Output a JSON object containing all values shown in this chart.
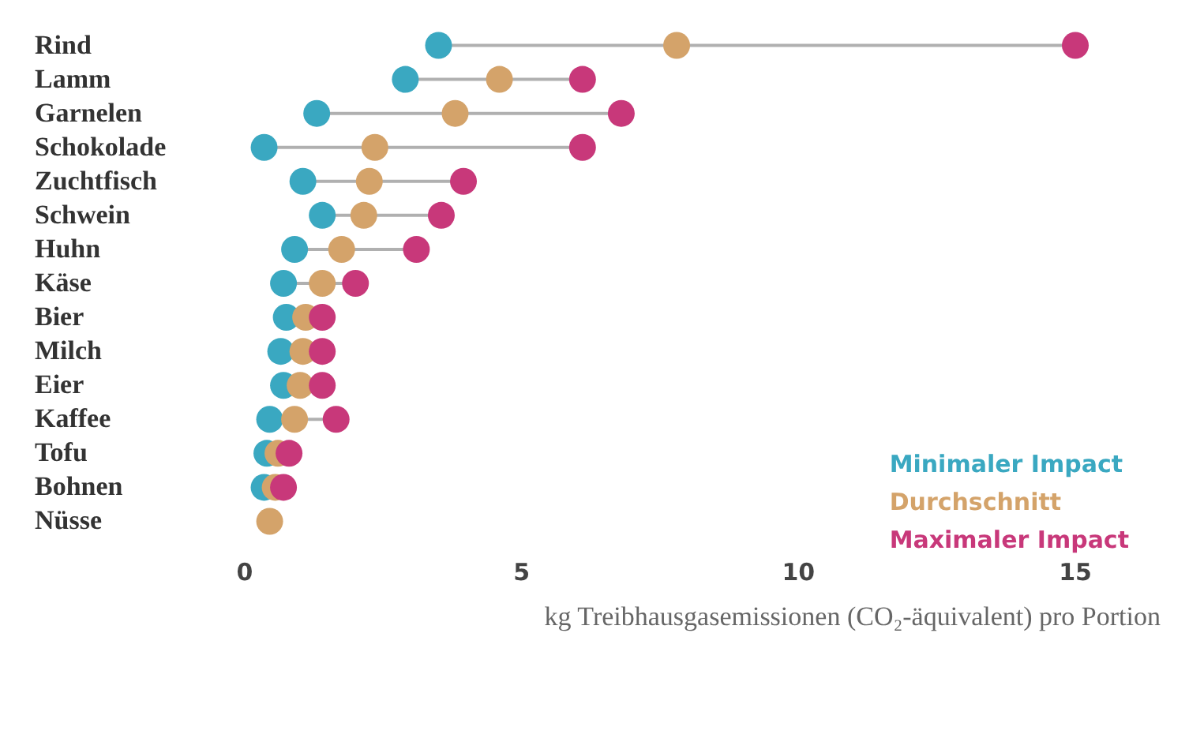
{
  "chart_data": {
    "type": "scatter",
    "orientation": "horizontal",
    "xlabel": "kg Treibhausgasemissionen (CO₂-äquivalent) pro Portion",
    "categories": [
      "Rind",
      "Lamm",
      "Garnelen",
      "Schokolade",
      "Zuchtfisch",
      "Schwein",
      "Huhn",
      "Käse",
      "Bier",
      "Milch",
      "Eier",
      "Kaffee",
      "Tofu",
      "Bohnen",
      "Nüsse"
    ],
    "series": [
      {
        "name": "Minimaler Impact",
        "color": "#3aa8c1",
        "values": [
          3.5,
          2.9,
          1.3,
          0.35,
          1.05,
          1.4,
          0.9,
          0.7,
          0.75,
          0.65,
          0.7,
          0.45,
          0.4,
          0.35,
          null
        ]
      },
      {
        "name": "Durchschnitt",
        "color": "#d4a36a",
        "values": [
          7.8,
          4.6,
          3.8,
          2.35,
          2.25,
          2.15,
          1.75,
          1.4,
          1.1,
          1.05,
          1.0,
          0.9,
          0.6,
          0.55,
          0.45
        ]
      },
      {
        "name": "Maximaler Impact",
        "color": "#c8387a",
        "values": [
          15.0,
          6.1,
          6.8,
          6.1,
          3.95,
          3.55,
          3.1,
          2.0,
          1.4,
          1.4,
          1.4,
          1.65,
          0.8,
          0.7,
          null
        ]
      }
    ],
    "xlim": [
      0,
      15
    ],
    "xticks": [
      0,
      5,
      10,
      15
    ],
    "legend": "bottom right",
    "marker": "circle",
    "grid": false
  }
}
